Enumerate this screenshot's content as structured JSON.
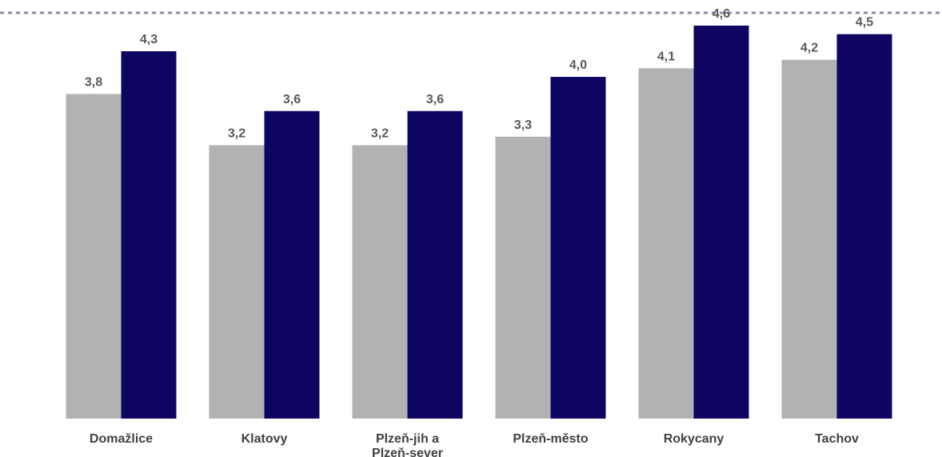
{
  "chart_data": {
    "type": "bar",
    "categories": [
      "Domažlice",
      "Klatovy",
      "Plzeň-jih a Plzeň-sever",
      "Plzeň-město",
      "Rokycany",
      "Tachov"
    ],
    "category_lines": [
      [
        "Domažlice"
      ],
      [
        "Klatovy"
      ],
      [
        "Plzeň-jih a",
        "Plzeň-sever"
      ],
      [
        "Plzeň-město"
      ],
      [
        "Rokycany"
      ],
      [
        "Tachov"
      ]
    ],
    "series": [
      {
        "values": [
          3.8,
          3.2,
          3.2,
          3.3,
          4.1,
          4.2
        ],
        "labels": [
          "3,8",
          "3,2",
          "3,2",
          "3,3",
          "4,1",
          "4,2"
        ],
        "color": "#b2b2b2"
      },
      {
        "values": [
          4.3,
          3.6,
          3.6,
          4.0,
          4.6,
          4.5
        ],
        "labels": [
          "4,3",
          "3,6",
          "3,6",
          "4,0",
          "4,6",
          "4,5"
        ],
        "color": "#0d0560"
      }
    ],
    "ylim": [
      0,
      4.9
    ],
    "grid": false,
    "title": "",
    "xlabel": "",
    "ylabel": "",
    "top_rule_color": "#8c8fb0"
  }
}
